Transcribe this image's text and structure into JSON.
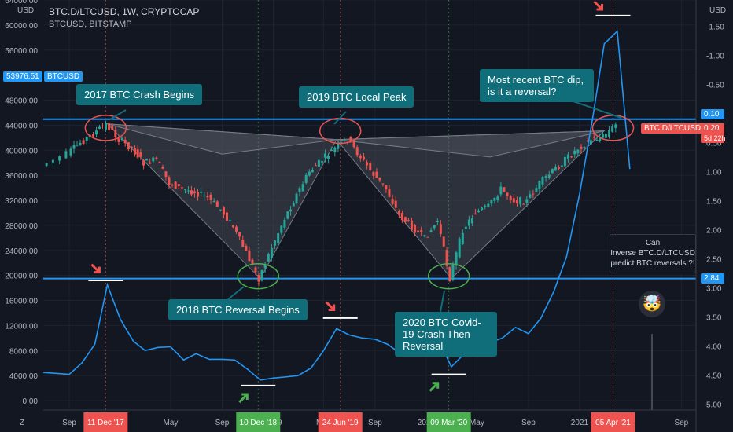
{
  "header": {
    "title": "BTC.D/LTCUSD, 1W, CRYPTOCAP",
    "subtitle": "BTCUSD, BITSTAMP",
    "left_unit": "USD",
    "right_unit": "USD"
  },
  "colors": {
    "background": "#131722",
    "up": "#26a69a",
    "down": "#ef5350",
    "line": "#2196f3",
    "hline": "#2196f3",
    "callout": "#0f6e7a",
    "red_circle": "#ef5350",
    "green_circle": "#4caf50"
  },
  "callouts": [
    {
      "id": "c1",
      "text": "2017 BTC Crash Begins"
    },
    {
      "id": "c2",
      "text": "2019 BTC Local Peak"
    },
    {
      "id": "c3",
      "text": "Most recent BTC dip, is it a reversal?"
    },
    {
      "id": "c4",
      "text": "2018 BTC Reversal Begins"
    },
    {
      "id": "c5",
      "text": "2020 BTC Covid-19 Crash Then Reversal"
    }
  ],
  "question_box": {
    "line1": "Can",
    "line2": "Inverse BTC.D/LTCUSD",
    "line3": "predict BTC reversals ?!"
  },
  "price_tags": {
    "btcusd_value": "53976.51",
    "btcusd_name": "BTCUSD",
    "level_top": "0.10",
    "level_bottom": "2.84",
    "current_value": "0.20",
    "current_name": "BTC.D/LTCUSD",
    "countdown": "5d 22h"
  },
  "chart_data": {
    "type": "line",
    "left_axis": {
      "label": "USD",
      "ticks": [
        "64000.00",
        "60000.00",
        "56000.00",
        "52000.00",
        "48000.00",
        "44000.00",
        "40000.00",
        "36000.00",
        "32000.00",
        "28000.00",
        "24000.00",
        "20000.00",
        "16000.00",
        "12000.00",
        "8000.00",
        "4000.00",
        "0.00"
      ],
      "range": [
        -1500,
        64000
      ]
    },
    "right_axis": {
      "label": "USD",
      "inverted": true,
      "ticks": [
        "-1.50",
        "-1.00",
        "-0.50",
        "0.00",
        "0.50",
        "1.00",
        "1.50",
        "2.00",
        "2.50",
        "3.00",
        "3.50",
        "4.00",
        "4.50",
        "5.00"
      ],
      "range": [
        -1.95,
        5.1
      ]
    },
    "x_axis": {
      "ticks": [
        "Sep",
        "May",
        "Sep",
        "2019",
        "May",
        "Sep",
        "2020",
        "May",
        "Sep",
        "2021",
        "Sep"
      ],
      "highlighted": [
        {
          "label": "11 Dec '17",
          "color": "#ef5350"
        },
        {
          "label": "10 Dec '18",
          "color": "#4caf50"
        },
        {
          "label": "24 Jun '19",
          "color": "#ef5350"
        },
        {
          "label": "09 Mar '20",
          "color": "#4caf50"
        },
        {
          "label": "05 Apr '21",
          "color": "#ef5350"
        }
      ]
    },
    "horizontal_levels": [
      {
        "value": 0.1,
        "label": "0.10"
      },
      {
        "value": 2.84,
        "label": "2.84"
      }
    ],
    "series": [
      {
        "name": "BTCUSD",
        "x": [
          "2017-07",
          "2017-09",
          "2017-10",
          "2017-11",
          "2017-12",
          "2018-01",
          "2018-02",
          "2018-03",
          "2018-04",
          "2018-05",
          "2018-06",
          "2018-07",
          "2018-08",
          "2018-09",
          "2018-10",
          "2018-11",
          "2018-12",
          "2019-01",
          "2019-02",
          "2019-03",
          "2019-04",
          "2019-05",
          "2019-06",
          "2019-07",
          "2019-08",
          "2019-09",
          "2019-10",
          "2019-11",
          "2019-12",
          "2020-01",
          "2020-02",
          "2020-03",
          "2020-04",
          "2020-05",
          "2020-06",
          "2020-07",
          "2020-08",
          "2020-09",
          "2020-10",
          "2020-11",
          "2020-12",
          "2021-01",
          "2021-02",
          "2021-03",
          "2021-04",
          "2021-05"
        ],
        "values": [
          4500,
          4200,
          6000,
          9000,
          18500,
          13000,
          9500,
          8000,
          8500,
          8600,
          6500,
          7500,
          6600,
          6600,
          6500,
          5000,
          3300,
          3600,
          3800,
          4000,
          5200,
          8000,
          11500,
          10500,
          10000,
          9800,
          9000,
          7500,
          7300,
          8600,
          9500,
          5400,
          7500,
          9500,
          9300,
          10000,
          11700,
          10700,
          13200,
          17500,
          23000,
          33000,
          45000,
          57000,
          59000,
          37000
        ]
      },
      {
        "name": "BTC.D/LTCUSD",
        "x": [
          "2017-07",
          "2017-09",
          "2017-10",
          "2017-11",
          "2017-12",
          "2018-01",
          "2018-02",
          "2018-03",
          "2018-04",
          "2018-05",
          "2018-06",
          "2018-07",
          "2018-08",
          "2018-09",
          "2018-10",
          "2018-11",
          "2018-12",
          "2019-01",
          "2019-02",
          "2019-03",
          "2019-04",
          "2019-05",
          "2019-06",
          "2019-07",
          "2019-08",
          "2019-09",
          "2019-10",
          "2019-11",
          "2019-12",
          "2020-01",
          "2020-02",
          "2020-03",
          "2020-04",
          "2020-05",
          "2020-06",
          "2020-07",
          "2020-08",
          "2020-09",
          "2020-10",
          "2020-11",
          "2020-12",
          "2021-01",
          "2021-02",
          "2021-03",
          "2021-04"
        ],
        "values": [
          0.9,
          0.7,
          0.5,
          0.35,
          0.18,
          0.45,
          0.6,
          0.85,
          0.8,
          1.2,
          1.3,
          1.35,
          1.45,
          1.65,
          1.95,
          2.4,
          2.84,
          2.3,
          1.8,
          1.4,
          1.0,
          0.8,
          0.6,
          0.45,
          0.75,
          1.05,
          1.3,
          1.75,
          1.95,
          2.15,
          1.85,
          2.84,
          2.0,
          1.7,
          1.6,
          1.3,
          1.5,
          1.5,
          1.2,
          1.0,
          0.8,
          0.6,
          0.45,
          0.4,
          0.2
        ]
      }
    ],
    "annotations": [
      "2017 BTC Crash Begins",
      "2019 BTC Local Peak",
      "Most recent BTC dip, is it a reversal?",
      "2018 BTC Reversal Begins",
      "2020 BTC Covid-19 Crash Then Reversal"
    ]
  }
}
